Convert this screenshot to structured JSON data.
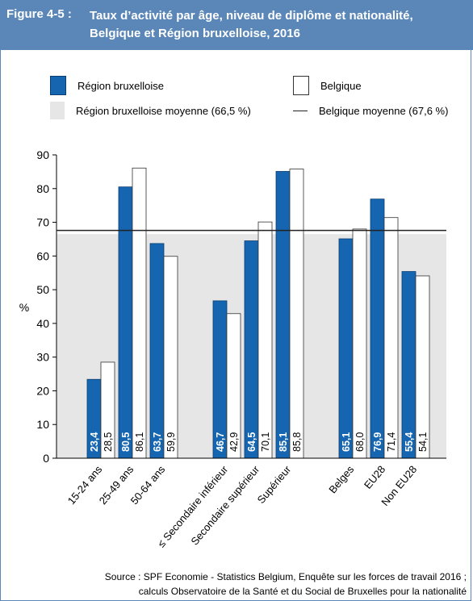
{
  "header": {
    "figure_label": "Figure 4-5 :",
    "title_line1": "Taux d’activité par âge, niveau de diplôme et nationalité,",
    "title_line2": "Belgique et Région bruxelloise, 2016"
  },
  "legend": {
    "region": "Région bruxelloise",
    "belgique": "Belgique",
    "region_avg": "Région bruxelloise moyenne (66,5 %)",
    "belgique_avg": "Belgique moyenne (67,6 %)"
  },
  "source": {
    "line1": "Source : SPF Economie - Statistics Belgium, Enquête sur les forces de travail 2016 ;",
    "line2": "calculs Observatoire de la Santé et du Social de Bruxelles pour la nationalité"
  },
  "colors": {
    "header_bg": "#5b87b8",
    "region": "#1565b0",
    "belgique": "#ffffff",
    "region_avg_area": "#e6e6e6",
    "belgique_avg_line": "#222222"
  },
  "chart_data": {
    "type": "bar",
    "ylabel": "%",
    "ylim": [
      0,
      90
    ],
    "yticks": [
      0,
      10,
      20,
      30,
      40,
      50,
      60,
      70,
      80,
      90
    ],
    "categories": [
      "15-24 ans",
      "25-49 ans",
      "50-64 ans",
      "≤ Secondaire inférieur",
      "Secondaire supérieur",
      "Supérieur",
      "Belges",
      "EU28",
      "Non EU28"
    ],
    "groups": [
      {
        "categories": [
          "15-24 ans",
          "25-49 ans",
          "50-64 ans"
        ]
      },
      {
        "categories": [
          "≤ Secondaire inférieur",
          "Secondaire supérieur",
          "Supérieur"
        ]
      },
      {
        "categories": [
          "Belges",
          "EU28",
          "Non EU28"
        ]
      }
    ],
    "series": [
      {
        "name": "Région bruxelloise",
        "values": [
          23.4,
          80.5,
          63.7,
          46.7,
          64.5,
          85.1,
          65.1,
          76.9,
          55.4
        ],
        "labels": [
          "23,4",
          "80,5",
          "63,7",
          "46,7",
          "64,5",
          "85,1",
          "65,1",
          "76,9",
          "55,4"
        ]
      },
      {
        "name": "Belgique",
        "values": [
          28.5,
          86.1,
          59.9,
          42.9,
          70.1,
          85.8,
          68.0,
          71.4,
          54.1
        ],
        "labels": [
          "28,5",
          "86,1",
          "59,9",
          "42,9",
          "70,1",
          "85,8",
          "68,0",
          "71,4",
          "54,1"
        ]
      }
    ],
    "reference": [
      {
        "name": "Région bruxelloise moyenne (66,5 %)",
        "value": 66.5,
        "style": "shaded-area"
      },
      {
        "name": "Belgique moyenne (67,6 %)",
        "value": 67.6,
        "style": "line"
      }
    ],
    "grid": false
  }
}
